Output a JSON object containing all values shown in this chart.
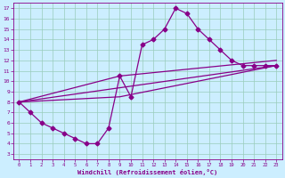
{
  "bg_color": "#cceeff",
  "grid_color": "#aaddcc",
  "line_color": "#880088",
  "xlim": [
    -0.5,
    23.5
  ],
  "ylim": [
    2.5,
    17.5
  ],
  "xticks": [
    0,
    1,
    2,
    3,
    4,
    5,
    6,
    7,
    8,
    9,
    10,
    11,
    12,
    13,
    14,
    15,
    16,
    17,
    18,
    19,
    20,
    21,
    22,
    23
  ],
  "yticks": [
    3,
    4,
    5,
    6,
    7,
    8,
    9,
    10,
    11,
    12,
    13,
    14,
    15,
    16,
    17
  ],
  "xlabel": "Windchill (Refroidissement éolien,°C)",
  "line1_x": [
    0,
    1,
    2,
    3,
    4,
    5,
    6,
    7,
    8,
    9,
    10,
    11,
    12,
    13,
    14,
    15,
    16,
    17,
    18,
    19,
    20,
    21,
    22,
    23
  ],
  "line1_y": [
    8,
    7,
    6,
    5.5,
    5,
    4.5,
    4,
    4,
    5.5,
    10.5,
    8.5,
    13.5,
    14,
    15,
    17,
    16.5,
    15,
    14,
    13,
    12,
    11.5,
    11.5,
    11.5,
    11.5
  ],
  "line2_x": [
    0,
    23
  ],
  "line2_y": [
    8,
    11.5
  ],
  "line3_x": [
    0,
    9,
    23
  ],
  "line3_y": [
    8,
    8.5,
    11.5
  ],
  "line4_x": [
    0,
    9,
    23
  ],
  "line4_y": [
    8,
    10.5,
    12
  ],
  "markersize": 2.5,
  "linewidth": 0.9
}
